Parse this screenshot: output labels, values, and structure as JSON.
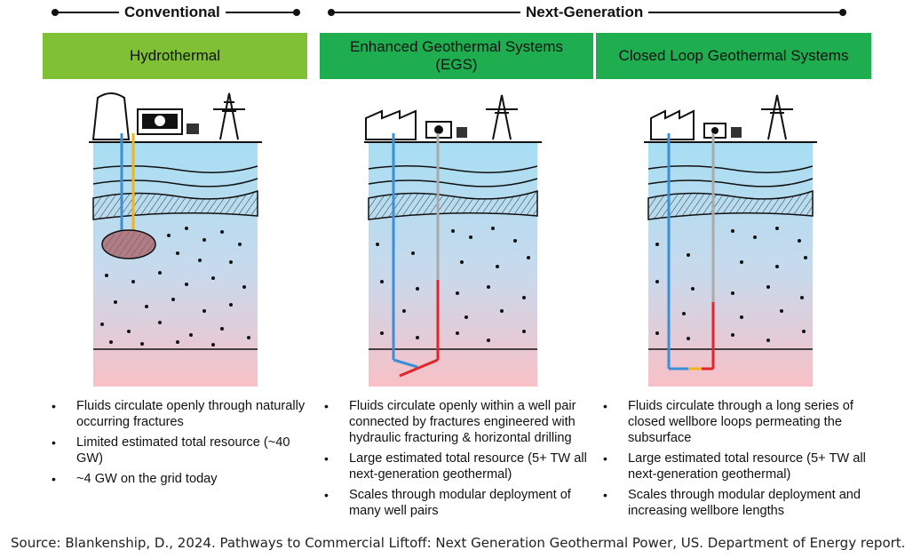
{
  "categories": {
    "conventional": "Conventional",
    "next_generation": "Next-Generation"
  },
  "colors": {
    "tab_light_green": "#7fc034",
    "tab_green": "#1eae4f",
    "ground_blue": "#a7def3",
    "ground_pink": "#f8c0c6",
    "reservoir": "#b07c86",
    "fluid_blue": "#3b8fd8",
    "fluid_red": "#e0262a",
    "fluid_yellow": "#f2b417"
  },
  "panels": [
    {
      "title": "Hydrothermal",
      "bullets": [
        "Fluids circulate openly through naturally occurring fractures",
        "Limited estimated total resource (~40 GW)",
        "~4 GW on the grid today"
      ]
    },
    {
      "title": "Enhanced Geothermal Systems (EGS)",
      "bullets": [
        "Fluids circulate openly within a well pair connected by fractures engineered with hydraulic fracturing & horizontal drilling",
        "Large estimated total resource (5+ TW all next-generation geothermal)",
        "Scales through modular deployment of many well pairs"
      ]
    },
    {
      "title": "Closed Loop Geothermal Systems",
      "bullets": [
        "Fluids circulate through a long series of closed wellbore loops permeating the subsurface",
        "Large estimated total resource (5+ TW all next-generation geothermal)",
        "Scales through modular deployment and increasing wellbore lengths"
      ]
    }
  ],
  "source": "Source: Blankenship, D., 2024. Pathways to Commercial Liftoff: Next Generation Geothermal Power, US. Department of Energy report."
}
